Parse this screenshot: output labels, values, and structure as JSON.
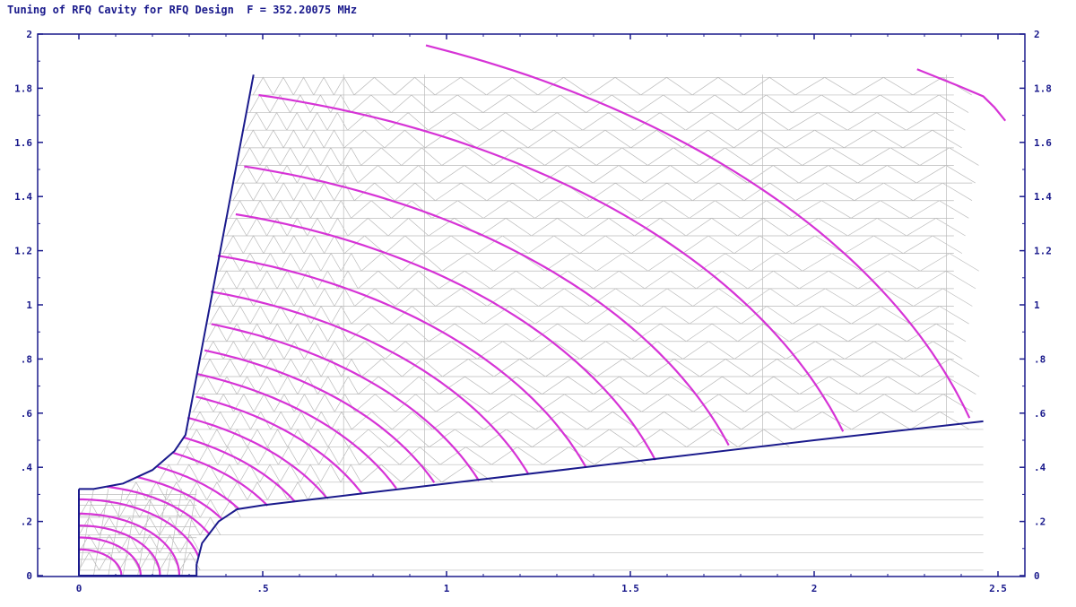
{
  "chart_data": {
    "type": "line",
    "title": "Tuning of RFQ Cavity for RFQ Design  F = 352.20075 MHz",
    "xlim": [
      0,
      2.55
    ],
    "ylim": [
      0,
      2
    ],
    "x_ticks": [
      {
        "value": 0,
        "label": "0"
      },
      {
        "value": 0.5,
        "label": ".5"
      },
      {
        "value": 1,
        "label": "1"
      },
      {
        "value": 1.5,
        "label": "1.5"
      },
      {
        "value": 2,
        "label": "2"
      },
      {
        "value": 2.5,
        "label": "2.5"
      }
    ],
    "y_ticks": [
      {
        "value": 0,
        "label": "0"
      },
      {
        "value": 0.2,
        "label": ".2"
      },
      {
        "value": 0.4,
        "label": ".4"
      },
      {
        "value": 0.6,
        "label": ".6"
      },
      {
        "value": 0.8,
        "label": ".8"
      },
      {
        "value": 1,
        "label": "1"
      },
      {
        "value": 1.2,
        "label": "1.2"
      },
      {
        "value": 1.4,
        "label": "1.4"
      },
      {
        "value": 1.6,
        "label": "1.6"
      },
      {
        "value": 1.8,
        "label": "1.8"
      },
      {
        "value": 2,
        "label": "2"
      }
    ],
    "boundary": {
      "color": "#1a1a8c",
      "points": [
        [
          0,
          0
        ],
        [
          0.32,
          0
        ],
        [
          0.32,
          0.04
        ],
        [
          0.335,
          0.12
        ],
        [
          0.38,
          0.2
        ],
        [
          0.43,
          0.245
        ],
        [
          0.5,
          0.26
        ],
        [
          0.75,
          0.3
        ],
        [
          1,
          0.34
        ],
        [
          1.5,
          0.42
        ],
        [
          2,
          0.5
        ],
        [
          2.46,
          0.57
        ]
      ],
      "inner_points": [
        [
          0,
          0.32
        ],
        [
          0.04,
          0.32
        ],
        [
          0.12,
          0.34
        ],
        [
          0.2,
          0.39
        ],
        [
          0.26,
          0.46
        ],
        [
          0.29,
          0.52
        ],
        [
          0.475,
          1.85
        ]
      ]
    },
    "mesh": {
      "color": "#bbbbbb",
      "x_range": [
        0.28,
        2.42
      ],
      "y_range": [
        0.05,
        1.85
      ],
      "vertical_lines": [
        0.72,
        0.94,
        1.86,
        2.36
      ]
    },
    "field_lines": {
      "color": "#d633d6",
      "center": [
        0.32,
        0.32
      ],
      "radii": [
        0.09,
        0.14,
        0.19,
        0.24,
        0.3,
        0.36,
        0.42,
        0.48,
        0.55,
        0.62,
        0.7,
        0.79,
        0.88,
        0.98,
        1.09,
        1.22,
        1.37,
        1.55,
        1.75,
        2.05,
        2.38
      ],
      "last_arc": [
        [
          2.28,
          1.87
        ],
        [
          2.39,
          1.81
        ],
        [
          2.46,
          1.77
        ],
        [
          2.49,
          1.73
        ],
        [
          2.52,
          1.68
        ]
      ]
    },
    "colors": {
      "axis": "#1a1a8c",
      "boundary": "#1a1a8c",
      "field": "#d633d6",
      "mesh": "#bbbbbb"
    }
  }
}
